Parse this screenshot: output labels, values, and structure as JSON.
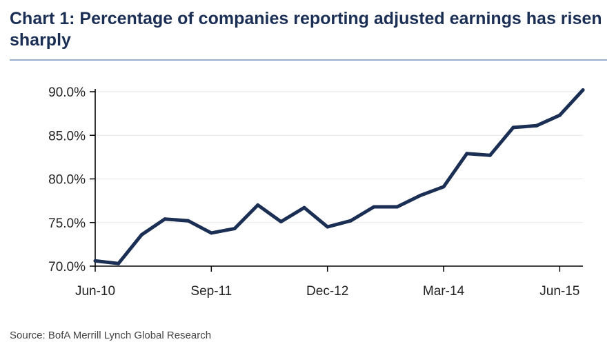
{
  "title": "Chart 1: Percentage of companies reporting adjusted earnings has risen sharply",
  "source": "Source: BofA Merrill Lynch Global Research",
  "colors": {
    "line": "#1b2f55",
    "title": "#1b2f55",
    "grid": "#e6e6e6",
    "axis": "#000000"
  },
  "chart_data": {
    "type": "line",
    "title": "Chart 1: Percentage of companies reporting adjusted earnings has risen sharply",
    "xlabel": "",
    "ylabel": "",
    "ylim": [
      70,
      90
    ],
    "xlim": [
      "2010-06",
      "2015-09"
    ],
    "yticks": [
      "70.0%",
      "75.0%",
      "80.0%",
      "85.0%",
      "90.0%"
    ],
    "ytick_values": [
      70,
      75,
      80,
      85,
      90
    ],
    "xticks": [
      "Jun-10",
      "Sep-11",
      "Dec-12",
      "Mar-14",
      "Jun-15"
    ],
    "xtick_values": [
      "2010-06",
      "2011-09",
      "2012-12",
      "2014-03",
      "2015-06"
    ],
    "grid": "horizontal",
    "legend": "none",
    "series": [
      {
        "x": [
          "2010-06",
          "2010-09",
          "2010-12",
          "2011-03",
          "2011-06",
          "2011-09",
          "2011-12",
          "2012-03",
          "2012-06",
          "2012-09",
          "2012-12",
          "2013-03",
          "2013-06",
          "2013-09",
          "2013-12",
          "2014-03",
          "2014-06",
          "2014-09",
          "2014-12",
          "2015-03",
          "2015-06",
          "2015-09"
        ],
        "values": [
          70.6,
          70.3,
          73.6,
          75.4,
          75.2,
          73.8,
          74.3,
          77.0,
          75.1,
          76.7,
          74.5,
          75.2,
          76.8,
          76.8,
          78.1,
          79.1,
          82.9,
          82.7,
          85.9,
          86.1,
          87.3,
          90.2
        ]
      }
    ]
  }
}
